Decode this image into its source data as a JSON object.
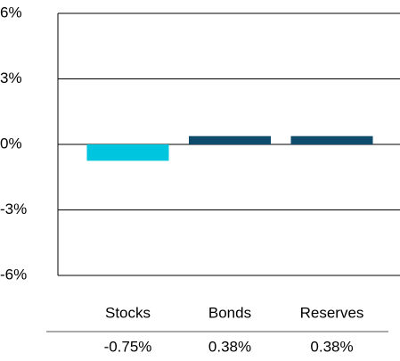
{
  "chart_data": {
    "type": "bar",
    "categories": [
      "Stocks",
      "Bonds",
      "Reserves"
    ],
    "values": [
      -0.75,
      0.38,
      0.38
    ],
    "value_labels": [
      "-0.75%",
      "0.38%",
      "0.38%"
    ],
    "colors": [
      "#00c5de",
      "#0f4b6b",
      "#0f4b6b"
    ],
    "ylim": [
      -6,
      6
    ],
    "yticks": [
      {
        "value": -6,
        "label": "-6%"
      },
      {
        "value": -3,
        "label": "-3%"
      },
      {
        "value": 0,
        "label": "0%"
      },
      {
        "value": 3,
        "label": "3%"
      },
      {
        "value": 6,
        "label": "6%"
      }
    ],
    "grid": true
  }
}
